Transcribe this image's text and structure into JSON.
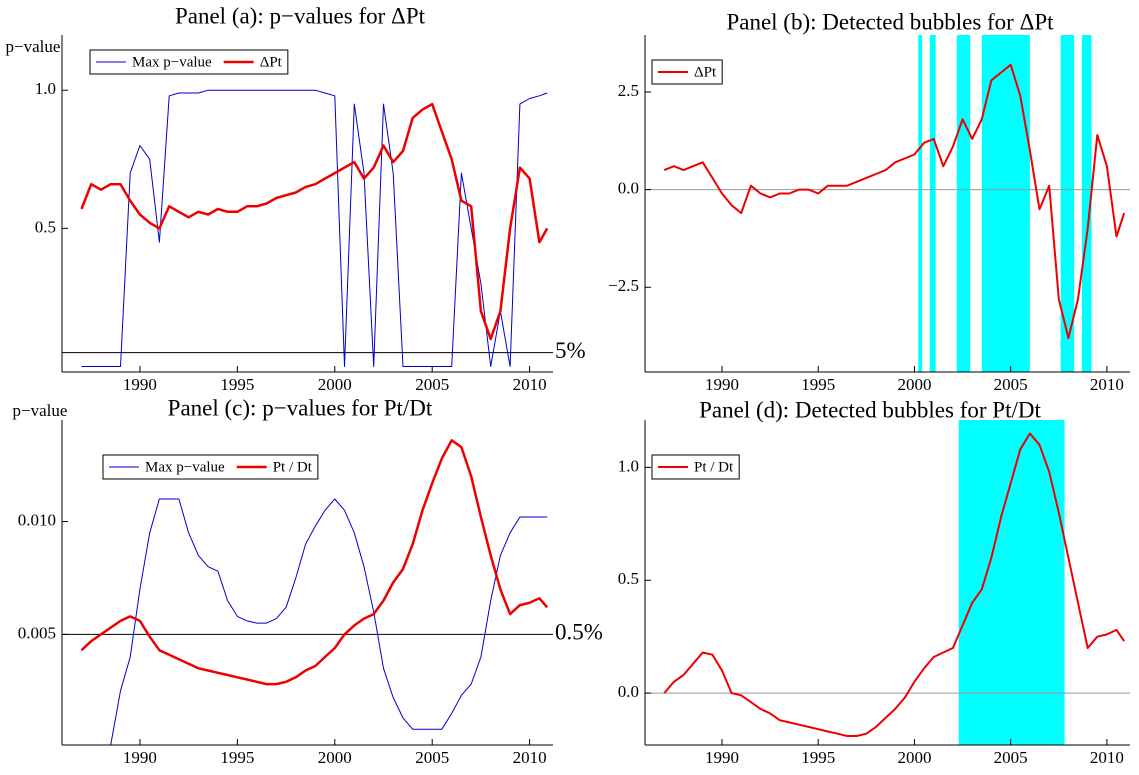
{
  "chart_data": [
    {
      "type": "line",
      "title": "Panel (a): p−values for ΔPt",
      "ylabel": "p−value",
      "x": [
        1987,
        1987.5,
        1988,
        1988.5,
        1989,
        1989.5,
        1990,
        1990.5,
        1991,
        1991.5,
        1992,
        1992.5,
        1993,
        1993.5,
        1994,
        1994.5,
        1995,
        1995.5,
        1996,
        1996.5,
        1997,
        1997.5,
        1998,
        1998.5,
        1999,
        1999.5,
        2000,
        2000.5,
        2001,
        2001.5,
        2002,
        2002.5,
        2003,
        2003.5,
        2004,
        2004.5,
        2005,
        2005.5,
        2006,
        2006.5,
        2007,
        2007.5,
        2008,
        2008.5,
        2009,
        2009.5,
        2010,
        2010.5,
        2010.9
      ],
      "series": [
        {
          "name": "Max p−value",
          "color": "#0000cc",
          "width": 1,
          "values": [
            0,
            0,
            0,
            0,
            0,
            0.7,
            0.8,
            0.75,
            0.45,
            0.98,
            0.99,
            0.99,
            0.99,
            1,
            1,
            1,
            1,
            1,
            1,
            1,
            1,
            1,
            1,
            1,
            1,
            0.99,
            0.98,
            0,
            0.95,
            0.7,
            0,
            0.95,
            0.7,
            0,
            0,
            0,
            0,
            0,
            0,
            0.7,
            0.5,
            0.3,
            0,
            0.2,
            0,
            0.95,
            0.97,
            0.98,
            0.99
          ]
        },
        {
          "name": "ΔPt",
          "color": "#ee0000",
          "width": 2.5,
          "values": [
            0.57,
            0.66,
            0.64,
            0.66,
            0.66,
            0.6,
            0.55,
            0.52,
            0.5,
            0.58,
            0.56,
            0.54,
            0.56,
            0.55,
            0.57,
            0.56,
            0.56,
            0.58,
            0.58,
            0.59,
            0.61,
            0.62,
            0.63,
            0.65,
            0.66,
            0.68,
            0.7,
            0.72,
            0.74,
            0.68,
            0.72,
            0.8,
            0.74,
            0.78,
            0.9,
            0.93,
            0.95,
            0.85,
            0.75,
            0.6,
            0.58,
            0.2,
            0.1,
            0.2,
            0.5,
            0.72,
            0.68,
            0.45,
            0.5
          ]
        }
      ],
      "xlim": [
        1986,
        2011.2
      ],
      "xticks": [
        1990,
        1995,
        2000,
        2005,
        2010
      ],
      "ylim": [
        -0.02,
        1.2
      ],
      "yticks": [
        0.5,
        {
          "value": 1,
          "label": "1.0"
        }
      ],
      "hline": {
        "value": 0.05,
        "label": "5%"
      },
      "legend": "upper left"
    },
    {
      "type": "line",
      "title": "Panel (b): Detected bubbles for ΔPt",
      "x": [
        1987,
        1987.5,
        1988,
        1988.5,
        1989,
        1989.5,
        1990,
        1990.5,
        1991,
        1991.5,
        1992,
        1992.5,
        1993,
        1993.5,
        1994,
        1994.5,
        1995,
        1995.5,
        1996,
        1996.5,
        1997,
        1997.5,
        1998,
        1998.5,
        1999,
        1999.5,
        2000,
        2000.5,
        2001,
        2001.5,
        2002,
        2002.5,
        2003,
        2003.5,
        2004,
        2004.5,
        2005,
        2005.5,
        2006,
        2006.5,
        2007,
        2007.5,
        2008,
        2008.5,
        2009,
        2009.5,
        2010,
        2010.5,
        2010.9
      ],
      "series": [
        {
          "name": "ΔPt",
          "color": "#ee0000",
          "width": 2,
          "values": [
            0.5,
            0.6,
            0.5,
            0.6,
            0.7,
            0.3,
            -0.1,
            -0.4,
            -0.6,
            0.1,
            -0.1,
            -0.2,
            -0.1,
            -0.1,
            0,
            0,
            -0.1,
            0.1,
            0.1,
            0.1,
            0.2,
            0.3,
            0.4,
            0.5,
            0.7,
            0.8,
            0.9,
            1.2,
            1.3,
            0.6,
            1.1,
            1.8,
            1.3,
            1.8,
            2.8,
            3,
            3.2,
            2.4,
            1,
            -0.5,
            0.1,
            -2.8,
            -3.8,
            -2.8,
            -1,
            1.4,
            0.6,
            -1.2,
            -0.6
          ]
        }
      ],
      "shaded_regions": [
        [
          2000.2,
          2000.4
        ],
        [
          2000.8,
          2001.1
        ],
        [
          2002.2,
          2002.9
        ],
        [
          2003.5,
          2006
        ],
        [
          2007.6,
          2008.3
        ],
        [
          2008.7,
          2009.2
        ]
      ],
      "shade_color": "#00ffff",
      "xlim": [
        1986,
        2011.2
      ],
      "xticks": [
        1990,
        1995,
        2000,
        2005,
        2010
      ],
      "ylim": [
        -4.67,
        3.96
      ],
      "yticks": [
        {
          "value": -2.5,
          "label": "−2.5"
        },
        {
          "value": 0,
          "label": "0.0"
        },
        2.5
      ],
      "zero_line": true,
      "legend": "upper left"
    },
    {
      "type": "line",
      "title": "Panel (c): p−values for Pt/Dt",
      "ylabel": "p−value",
      "x": [
        1987,
        1987.5,
        1988,
        1988.5,
        1989,
        1989.5,
        1990,
        1990.5,
        1991,
        1991.5,
        1992,
        1992.5,
        1993,
        1993.5,
        1994,
        1994.5,
        1995,
        1995.5,
        1996,
        1996.5,
        1997,
        1997.5,
        1998,
        1998.5,
        1999,
        1999.5,
        2000,
        2000.5,
        2001,
        2001.5,
        2002,
        2002.5,
        2003,
        2003.5,
        2004,
        2004.5,
        2005,
        2005.5,
        2006,
        2006.5,
        2007,
        2007.5,
        2008,
        2008.5,
        2009,
        2009.5,
        2010,
        2010.5,
        2010.9
      ],
      "series": [
        {
          "name": "Max p−value",
          "color": "#0000cc",
          "width": 1,
          "values": [
            0.0001,
            0.0001,
            0.0001,
            0.0001,
            0.0025,
            0.004,
            0.007,
            0.0095,
            0.011,
            0.011,
            0.011,
            0.0095,
            0.0085,
            0.008,
            0.0078,
            0.0065,
            0.0058,
            0.0056,
            0.0055,
            0.0055,
            0.0057,
            0.0062,
            0.0075,
            0.009,
            0.0098,
            0.0105,
            0.011,
            0.0105,
            0.0095,
            0.008,
            0.006,
            0.0035,
            0.0022,
            0.0013,
            0.0008,
            0.0008,
            0.0008,
            0.0008,
            0.0015,
            0.0023,
            0.0028,
            0.004,
            0.0065,
            0.0085,
            0.0095,
            0.0102,
            0.0102,
            0.0102,
            0.0102
          ]
        },
        {
          "name": "Pt / Dt",
          "color": "#ee0000",
          "width": 2.5,
          "values": [
            0.0043,
            0.0047,
            0.005,
            0.0053,
            0.0056,
            0.0058,
            0.0056,
            0.0049,
            0.0043,
            0.0041,
            0.0039,
            0.0037,
            0.0035,
            0.0034,
            0.0033,
            0.0032,
            0.0031,
            0.003,
            0.0029,
            0.0028,
            0.0028,
            0.0029,
            0.0031,
            0.0034,
            0.0036,
            0.004,
            0.0044,
            0.005,
            0.0054,
            0.0057,
            0.0059,
            0.0065,
            0.0073,
            0.0079,
            0.009,
            0.0105,
            0.0117,
            0.0128,
            0.0136,
            0.0133,
            0.012,
            0.0102,
            0.0085,
            0.007,
            0.0059,
            0.0063,
            0.0064,
            0.0066,
            0.0062
          ]
        }
      ],
      "xlim": [
        1986,
        2011.2
      ],
      "xticks": [
        1990,
        1995,
        2000,
        2005,
        2010
      ],
      "ylim": [
        0.0001,
        0.0145
      ],
      "yticks": [
        0.005,
        {
          "value": 0.01,
          "label": "0.010"
        }
      ],
      "hline": {
        "value": 0.005,
        "label": "0.5%"
      },
      "legend": "upper left"
    },
    {
      "type": "line",
      "title": "Panel (d): Detected bubbles for Pt/Dt",
      "x": [
        1987,
        1987.5,
        1988,
        1988.5,
        1989,
        1989.5,
        1990,
        1990.5,
        1991,
        1991.5,
        1992,
        1992.5,
        1993,
        1993.5,
        1994,
        1994.5,
        1995,
        1995.5,
        1996,
        1996.5,
        1997,
        1997.5,
        1998,
        1998.5,
        1999,
        1999.5,
        2000,
        2000.5,
        2001,
        2001.5,
        2002,
        2002.5,
        2003,
        2003.5,
        2004,
        2004.5,
        2005,
        2005.5,
        2006,
        2006.5,
        2007,
        2007.5,
        2008,
        2008.5,
        2009,
        2009.5,
        2010,
        2010.5,
        2010.9
      ],
      "series": [
        {
          "name": "Pt / Dt",
          "color": "#ee0000",
          "width": 2,
          "values": [
            0,
            0.05,
            0.08,
            0.13,
            0.18,
            0.17,
            0.1,
            0,
            -0.01,
            -0.04,
            -0.07,
            -0.09,
            -0.12,
            -0.13,
            -0.14,
            -0.15,
            -0.16,
            -0.17,
            -0.18,
            -0.19,
            -0.19,
            -0.18,
            -0.15,
            -0.11,
            -0.07,
            -0.02,
            0.05,
            0.11,
            0.16,
            0.18,
            0.2,
            0.3,
            0.4,
            0.46,
            0.6,
            0.78,
            0.93,
            1.08,
            1.15,
            1.1,
            0.98,
            0.8,
            0.6,
            0.4,
            0.2,
            0.25,
            0.26,
            0.28,
            0.23
          ]
        }
      ],
      "shaded_regions": [
        [
          2002.3,
          2007.8
        ]
      ],
      "shade_color": "#00ffff",
      "xlim": [
        1986,
        2011.2
      ],
      "xticks": [
        1990,
        1995,
        2000,
        2005,
        2010
      ],
      "ylim": [
        -0.23,
        1.21
      ],
      "yticks": [
        {
          "value": 0,
          "label": "0.0"
        },
        0.5,
        {
          "value": 1,
          "label": "1.0"
        }
      ],
      "zero_line": true,
      "legend": "upper left"
    }
  ]
}
